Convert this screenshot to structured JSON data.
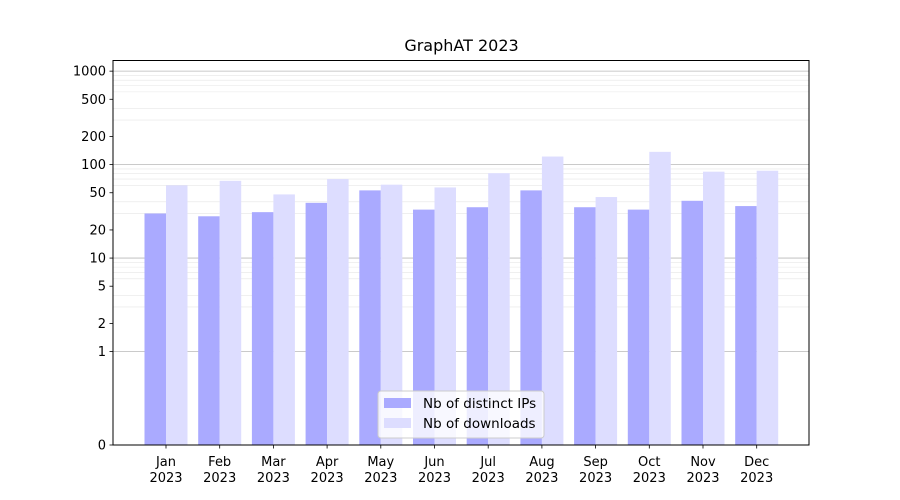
{
  "chart_data": {
    "type": "bar",
    "title": "GraphAT 2023",
    "xlabel": "",
    "ylabel": "",
    "yscale": "symlog",
    "ylim": [
      0,
      1300
    ],
    "yticks": [
      0,
      1,
      2,
      5,
      10,
      20,
      50,
      100,
      200,
      500,
      1000
    ],
    "ytick_labels": [
      "0",
      "1",
      "2",
      "5",
      "10",
      "20",
      "50",
      "100",
      "200",
      "500",
      "1000"
    ],
    "grid": "horizontal",
    "legend_position": "bottom-center",
    "categories": [
      "Jan",
      "Feb",
      "Mar",
      "Apr",
      "May",
      "Jun",
      "Jul",
      "Aug",
      "Sep",
      "Oct",
      "Nov",
      "Dec"
    ],
    "category_year": "2023",
    "series": [
      {
        "name": "Nb of distinct IPs",
        "color": "#aaaaff",
        "values": [
          30,
          28,
          31,
          39,
          53,
          33,
          35,
          53,
          35,
          33,
          41,
          36
        ]
      },
      {
        "name": "Nb of downloads",
        "color": "#ddddff",
        "values": [
          60,
          67,
          48,
          70,
          61,
          57,
          81,
          122,
          45,
          137,
          84,
          86
        ]
      }
    ]
  }
}
